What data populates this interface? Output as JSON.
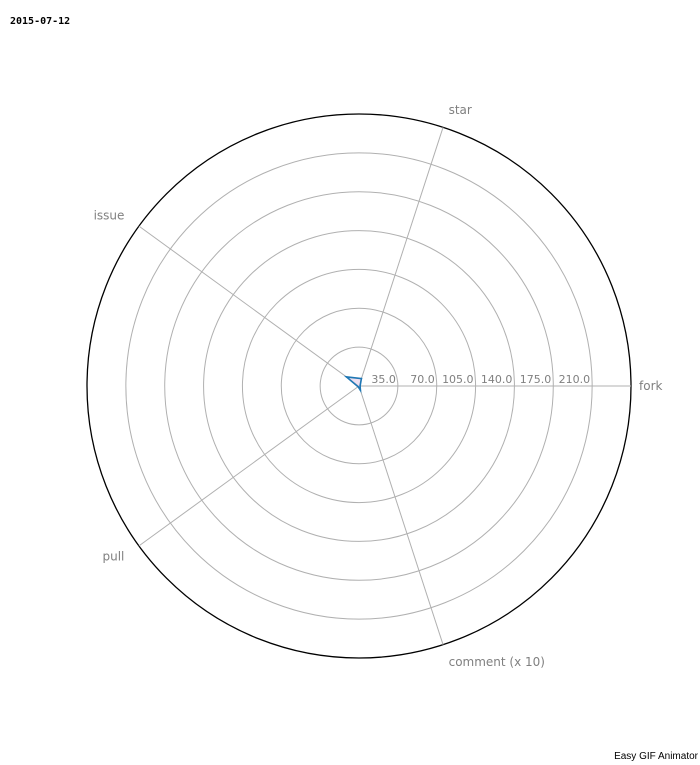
{
  "date_stamp": "2015-07-12",
  "watermark": "Easy GIF Animator",
  "chart_data": {
    "type": "radar",
    "axes": [
      "fork",
      "star",
      "issue",
      "pull",
      "comment (x 10)"
    ],
    "rticks": [
      35.0,
      70.0,
      105.0,
      140.0,
      175.0,
      210.0
    ],
    "rtick_labels": [
      "35.0",
      "70.0",
      "105.0",
      "140.0",
      "175.0",
      "210.0"
    ],
    "rmax": 245,
    "grid": true,
    "series": [
      {
        "values": [
          1,
          7,
          14,
          1,
          4
        ],
        "color": "#1f77b4",
        "fill": "#e8d8ee"
      }
    ],
    "colors": {
      "grid": "#b0b0b0",
      "outer": "#000000",
      "text": "#808080"
    }
  }
}
